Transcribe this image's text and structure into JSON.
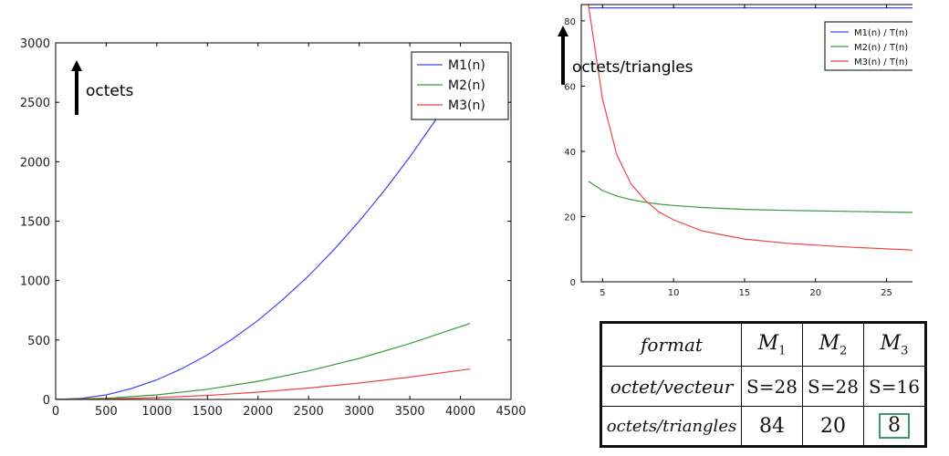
{
  "chart_data": [
    {
      "type": "line",
      "xlim": [
        0,
        4500
      ],
      "ylim": [
        0,
        3000
      ],
      "x_ticks": [
        0,
        500,
        1000,
        1500,
        2000,
        2500,
        3000,
        3500,
        4000,
        4500
      ],
      "y_ticks": [
        0,
        500,
        1000,
        1500,
        2000,
        2500,
        3000
      ],
      "annotation": "octets",
      "legend_position": "top-right",
      "series": [
        {
          "name": "M1(n)",
          "color": "#4444ee",
          "x": [
            0,
            250,
            500,
            750,
            1000,
            1250,
            1500,
            1750,
            2000,
            2250,
            2500,
            2750,
            3000,
            3250,
            3500,
            3750,
            3850
          ],
          "y": [
            0,
            9,
            38,
            92,
            165,
            260,
            375,
            510,
            665,
            845,
            1040,
            1260,
            1500,
            1760,
            2040,
            2345,
            2475
          ]
        },
        {
          "name": "M2(n)",
          "color": "#3a9a3a",
          "x": [
            0,
            500,
            1000,
            1500,
            2000,
            2500,
            3000,
            3500,
            4096
          ],
          "y": [
            0,
            10,
            38,
            86,
            153,
            240,
            345,
            470,
            640
          ]
        },
        {
          "name": "M3(n)",
          "color": "#ee4444",
          "x": [
            0,
            500,
            1000,
            1500,
            2000,
            2500,
            3000,
            3500,
            4096
          ],
          "y": [
            0,
            4,
            15,
            34,
            61,
            96,
            138,
            188,
            256
          ]
        }
      ]
    },
    {
      "type": "line",
      "xlim": [
        3.5,
        28.5
      ],
      "ylim": [
        0,
        85
      ],
      "x_ticks": [
        5,
        10,
        15,
        20,
        25
      ],
      "y_ticks": [
        0,
        20,
        40,
        60,
        80
      ],
      "annotation": "octets/triangles",
      "legend_position": "top-right",
      "series": [
        {
          "name": "M1(n) / T(n)",
          "color": "#4444ee",
          "x": [
            4,
            28.5
          ],
          "y": [
            84,
            84
          ]
        },
        {
          "name": "M2(n) / T(n)",
          "color": "#3a9a3a",
          "x": [
            4,
            5,
            6,
            7,
            8,
            9,
            10,
            12,
            15,
            18,
            22,
            25,
            28.5
          ],
          "y": [
            30.8,
            28,
            26.3,
            25.2,
            24.4,
            23.8,
            23.4,
            22.8,
            22.2,
            21.9,
            21.6,
            21.4,
            21.2
          ]
        },
        {
          "name": "M3(n) / T(n)",
          "color": "#ee4444",
          "x": [
            3.8,
            4,
            5,
            6,
            7,
            8,
            9,
            10,
            12,
            15,
            18,
            22,
            25,
            28.5
          ],
          "y": [
            90,
            85,
            56,
            39,
            30,
            25,
            21.3,
            19,
            15.6,
            13.1,
            11.8,
            10.7,
            10.1,
            9.4
          ]
        }
      ]
    }
  ],
  "table": {
    "header_label": "format",
    "columns": [
      {
        "letter": "M",
        "sub": "1"
      },
      {
        "letter": "M",
        "sub": "2"
      },
      {
        "letter": "M",
        "sub": "3"
      }
    ],
    "rows": [
      {
        "label": "octet/vecteur",
        "values": [
          "S=28",
          "S=28",
          "S=16"
        ]
      },
      {
        "label": "octets/triangles",
        "values": [
          "84",
          "20",
          "8"
        ]
      }
    ],
    "highlight_color": "#3a9a6a"
  }
}
